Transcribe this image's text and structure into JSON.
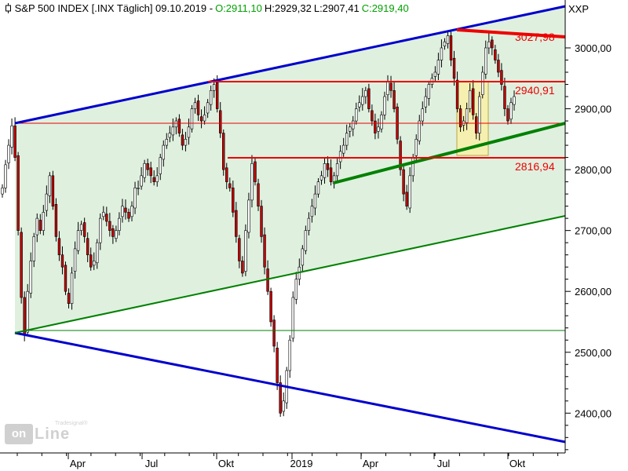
{
  "header": {
    "title": "S&P 500 INDEX [.INX  Täglich] 09.10.2019 -",
    "open": "O:2911,10",
    "high": "H:2929,32",
    "low": "L:2907,41",
    "close": "C:2919,40"
  },
  "symbol_label": "XXP",
  "watermark": {
    "left_text": "on",
    "right_text": "Line",
    "brand": "Tradesignal®"
  },
  "colors": {
    "up_candle": "#ffffff",
    "down_candle": "#c00000",
    "channel_fill": "#dff0df",
    "channel_line": "#0000cc",
    "support_green": "#008000",
    "resistance_red": "#ee0000",
    "box_fill": "#f5f0b0"
  },
  "chart_data": {
    "type": "candlestick",
    "title": "S&P 500 INDEX",
    "y_ticks": [
      "3000,00",
      "2900,00",
      "2800,00",
      "2700,00",
      "2600,00",
      "2500,00",
      "2400,00"
    ],
    "x_ticks": [
      "Apr",
      "Jul",
      "Okt",
      "2019",
      "Apr",
      "Jul",
      "Okt"
    ],
    "ylim": [
      2340,
      3070
    ],
    "price_levels": [
      {
        "label": "3027,98",
        "value": 3027.98
      },
      {
        "label": "2940,91",
        "value": 2940.91
      },
      {
        "label": "2816,94",
        "value": 2816.94
      }
    ],
    "closes": [
      2770,
      2808,
      2840,
      2872,
      2820,
      2700,
      2590,
      2530,
      2600,
      2650,
      2690,
      2720,
      2700,
      2730,
      2760,
      2790,
      2740,
      2690,
      2660,
      2640,
      2600,
      2580,
      2630,
      2670,
      2700,
      2710,
      2690,
      2660,
      2640,
      2650,
      2680,
      2720,
      2730,
      2715,
      2700,
      2690,
      2700,
      2720,
      2740,
      2730,
      2720,
      2740,
      2770,
      2770,
      2790,
      2810,
      2800,
      2790,
      2780,
      2790,
      2820,
      2840,
      2850,
      2860,
      2870,
      2880,
      2860,
      2840,
      2850,
      2870,
      2900,
      2910,
      2890,
      2880,
      2890,
      2910,
      2930,
      2940,
      2900,
      2860,
      2800,
      2780,
      2770,
      2730,
      2690,
      2650,
      2630,
      2700,
      2750,
      2810,
      2780,
      2740,
      2690,
      2640,
      2600,
      2550,
      2510,
      2450,
      2400,
      2420,
      2470,
      2520,
      2590,
      2620,
      2640,
      2670,
      2700,
      2720,
      2740,
      2760,
      2780,
      2790,
      2810,
      2800,
      2780,
      2790,
      2810,
      2830,
      2840,
      2860,
      2870,
      2880,
      2900,
      2910,
      2920,
      2930,
      2900,
      2880,
      2860,
      2870,
      2890,
      2920,
      2945,
      2930,
      2900,
      2850,
      2800,
      2760,
      2740,
      2790,
      2820,
      2850,
      2880,
      2900,
      2920,
      2940,
      2950,
      2960,
      2980,
      3000,
      3010,
      3020,
      2980,
      2950,
      2900,
      2870,
      2880,
      2900,
      2930,
      2890,
      2860,
      2920,
      2960,
      3000,
      3010,
      3000,
      2980,
      2960,
      2940,
      2900,
      2880,
      2910,
      2920
    ]
  }
}
